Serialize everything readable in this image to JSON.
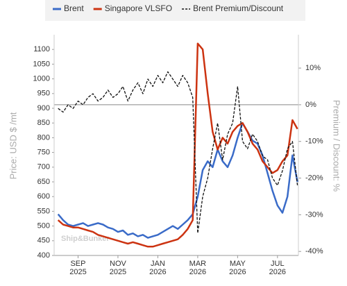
{
  "chart_data": {
    "type": "line",
    "y_axis_label": "Price: USD $ /mt",
    "y2_axis_label": "Premium / Discount: %",
    "watermark": "Ship&Bunker",
    "x": [
      7,
      7.25,
      7.5,
      7.75,
      8,
      8.25,
      8.5,
      8.75,
      9,
      9.25,
      9.5,
      9.75,
      10,
      10.25,
      10.5,
      10.75,
      11,
      11.25,
      11.5,
      11.75,
      12,
      12.25,
      12.5,
      12.75,
      13,
      13.25,
      13.5,
      13.75,
      14,
      14.25,
      14.5,
      14.75,
      15,
      15.25,
      15.5,
      15.75,
      16,
      16.25,
      16.5,
      16.75,
      17,
      17.25,
      17.5,
      17.75,
      18,
      18.25,
      18.5,
      18.75,
      19
    ],
    "xlim": [
      6.8,
      19.05
    ],
    "xticks": [
      {
        "value": 8,
        "label": "SEP",
        "year": "2025"
      },
      {
        "value": 10,
        "label": "NOV",
        "year": "2025"
      },
      {
        "value": 12,
        "label": "JAN",
        "year": "2026"
      },
      {
        "value": 14,
        "label": "MAR",
        "year": "2026"
      },
      {
        "value": 16,
        "label": "MAY",
        "year": "2026"
      },
      {
        "value": 18,
        "label": "JUL",
        "year": "2026"
      }
    ],
    "ylim": [
      400,
      1150
    ],
    "yticks": [
      400,
      450,
      500,
      550,
      600,
      650,
      700,
      750,
      800,
      850,
      900,
      950,
      1000,
      1050,
      1100
    ],
    "y2lim": [
      -41.1,
      19.1
    ],
    "y2ticks": [
      {
        "value": -40,
        "label": "-40%"
      },
      {
        "value": -30,
        "label": "-30%"
      },
      {
        "value": -20,
        "label": "-20%"
      },
      {
        "value": -10,
        "label": "-10%"
      },
      {
        "value": 0,
        "label": "0%"
      },
      {
        "value": 10,
        "label": "10%"
      }
    ],
    "series": [
      {
        "name": "Brent",
        "color": "#3a6bc8",
        "line_style": "solid",
        "values": [
          540,
          520,
          505,
          500,
          505,
          510,
          500,
          505,
          510,
          505,
          495,
          490,
          480,
          485,
          470,
          475,
          465,
          470,
          460,
          465,
          470,
          480,
          490,
          500,
          490,
          505,
          520,
          540,
          600,
          690,
          720,
          700,
          760,
          720,
          700,
          740,
          800,
          850,
          820,
          790,
          780,
          740,
          680,
          620,
          570,
          545,
          600,
          740,
          650
        ]
      },
      {
        "name": "Singapore VLSFO",
        "color": "#cc3311",
        "line_style": "solid",
        "values": [
          520,
          505,
          500,
          495,
          495,
          490,
          485,
          480,
          470,
          465,
          460,
          455,
          450,
          445,
          440,
          445,
          440,
          435,
          430,
          430,
          435,
          440,
          445,
          450,
          455,
          470,
          490,
          520,
          1120,
          1100,
          950,
          820,
          760,
          800,
          780,
          820,
          840,
          850,
          820,
          780,
          760,
          720,
          700,
          680,
          690,
          720,
          740,
          860,
          830
        ]
      },
      {
        "name": "Brent Premium/Discount",
        "color": "#111111",
        "line_style": "dashed",
        "axis": "y2",
        "values": [
          -1,
          -2,
          0,
          -1,
          1,
          0,
          2,
          3,
          1,
          2,
          4,
          2,
          3,
          5,
          1,
          4,
          6,
          3,
          7,
          5,
          8,
          6,
          9,
          7,
          5,
          8,
          6,
          2,
          -35,
          -25,
          -20,
          -12,
          -5,
          -15,
          -8,
          -5,
          5,
          -10,
          -12,
          -8,
          -10,
          -14,
          -15,
          -20,
          -22,
          -18,
          -12,
          -10,
          -22
        ]
      }
    ]
  }
}
